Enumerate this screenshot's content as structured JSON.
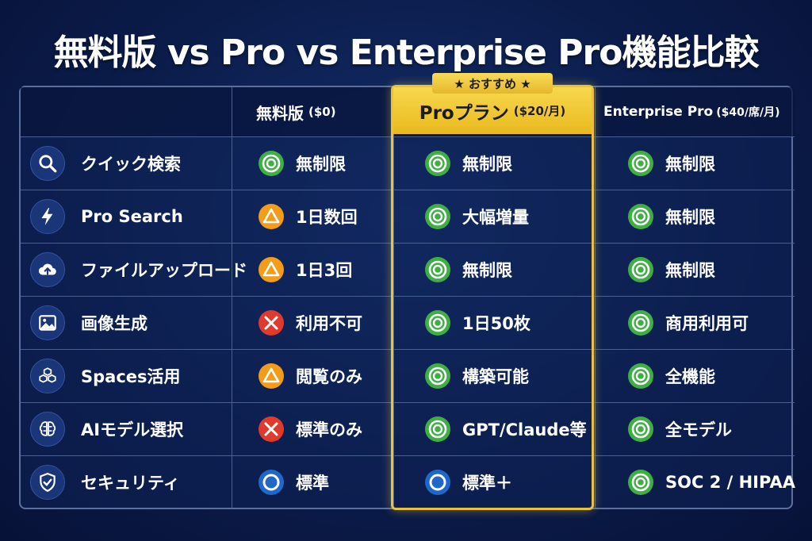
{
  "title": "無料版 vs Pro vs Enterprise Pro機能比較",
  "badge": "★ おすすめ ★",
  "headers": {
    "free": {
      "name": "無料版",
      "price": "($0)"
    },
    "pro": {
      "name": "Proプラン",
      "price": "($20/月)"
    },
    "enterprise": {
      "name": "Enterprise Pro",
      "price": "($40/席/月)"
    }
  },
  "marks_legend": {
    "double_circle": "#3fae45",
    "triangle": "#f39c1a",
    "cross": "#e0392e",
    "circle": "#1f67c9"
  },
  "rows": [
    {
      "icon": "search-icon",
      "feature": "クイック検索",
      "free": {
        "mark": "double-circle",
        "text": "無制限"
      },
      "pro": {
        "mark": "double-circle",
        "text": "無制限"
      },
      "enterprise": {
        "mark": "double-circle",
        "text": "無制限"
      }
    },
    {
      "icon": "lightning-icon",
      "feature": "Pro Search",
      "free": {
        "mark": "triangle",
        "text": "1日数回"
      },
      "pro": {
        "mark": "double-circle",
        "text": "大幅増量"
      },
      "enterprise": {
        "mark": "double-circle",
        "text": "無制限"
      }
    },
    {
      "icon": "cloud-upload-icon",
      "feature": "ファイルアップロード",
      "free": {
        "mark": "triangle",
        "text": "1日3回"
      },
      "pro": {
        "mark": "double-circle",
        "text": "無制限"
      },
      "enterprise": {
        "mark": "double-circle",
        "text": "無制限"
      }
    },
    {
      "icon": "image-icon",
      "feature": "画像生成",
      "free": {
        "mark": "cross",
        "text": "利用不可"
      },
      "pro": {
        "mark": "double-circle",
        "text": "1日50枚"
      },
      "enterprise": {
        "mark": "double-circle",
        "text": "商用利用可"
      }
    },
    {
      "icon": "cubes-icon",
      "feature": "Spaces活用",
      "free": {
        "mark": "triangle",
        "text": "閲覧のみ"
      },
      "pro": {
        "mark": "double-circle",
        "text": "構築可能"
      },
      "enterprise": {
        "mark": "double-circle",
        "text": "全機能"
      }
    },
    {
      "icon": "brain-icon",
      "feature": "AIモデル選択",
      "free": {
        "mark": "cross",
        "text": "標準のみ"
      },
      "pro": {
        "mark": "double-circle",
        "text": "GPT/Claude等"
      },
      "enterprise": {
        "mark": "double-circle",
        "text": "全モデル"
      }
    },
    {
      "icon": "shield-check-icon",
      "feature": "セキュリティ",
      "free": {
        "mark": "circle",
        "text": "標準"
      },
      "pro": {
        "mark": "circle",
        "text": "標準＋"
      },
      "enterprise": {
        "mark": "double-circle",
        "text": "SOC 2 / HIPAA"
      }
    }
  ]
}
